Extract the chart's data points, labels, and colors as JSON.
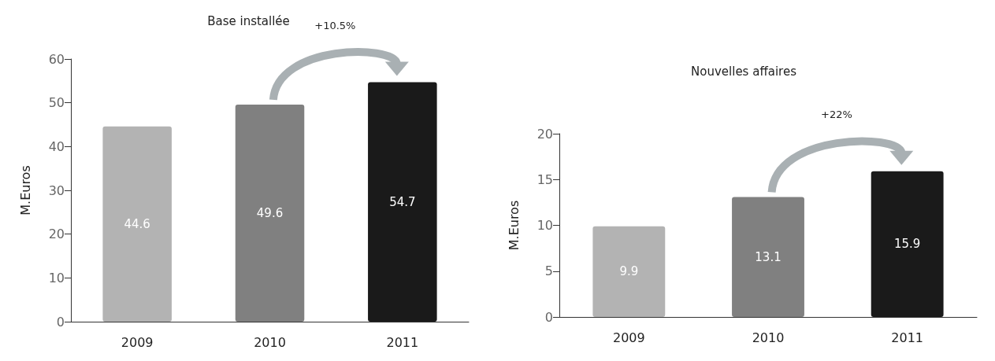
{
  "chart_data": [
    {
      "type": "bar",
      "title": "Base installée",
      "ylabel": "M.Euros",
      "categories": [
        "2009",
        "2010",
        "2011"
      ],
      "values": [
        44.6,
        49.6,
        54.7
      ],
      "colors": [
        "#b3b3b3",
        "#808080",
        "#1a1a1a"
      ],
      "ylim": [
        0,
        60
      ],
      "yticks": [
        0,
        10,
        20,
        30,
        40,
        50,
        60
      ],
      "grid": false,
      "data_labels": true,
      "annotations": [
        "+10.5%"
      ]
    },
    {
      "type": "bar",
      "title": "Nouvelles affaires",
      "ylabel": "M.Euros",
      "categories": [
        "2009",
        "2010",
        "2011"
      ],
      "values": [
        9.9,
        13.1,
        15.9
      ],
      "colors": [
        "#b3b3b3",
        "#808080",
        "#1a1a1a"
      ],
      "ylim": [
        0,
        20
      ],
      "yticks": [
        0,
        5,
        10,
        15,
        20
      ],
      "grid": false,
      "data_labels": true,
      "annotations": [
        "+22%"
      ]
    }
  ]
}
